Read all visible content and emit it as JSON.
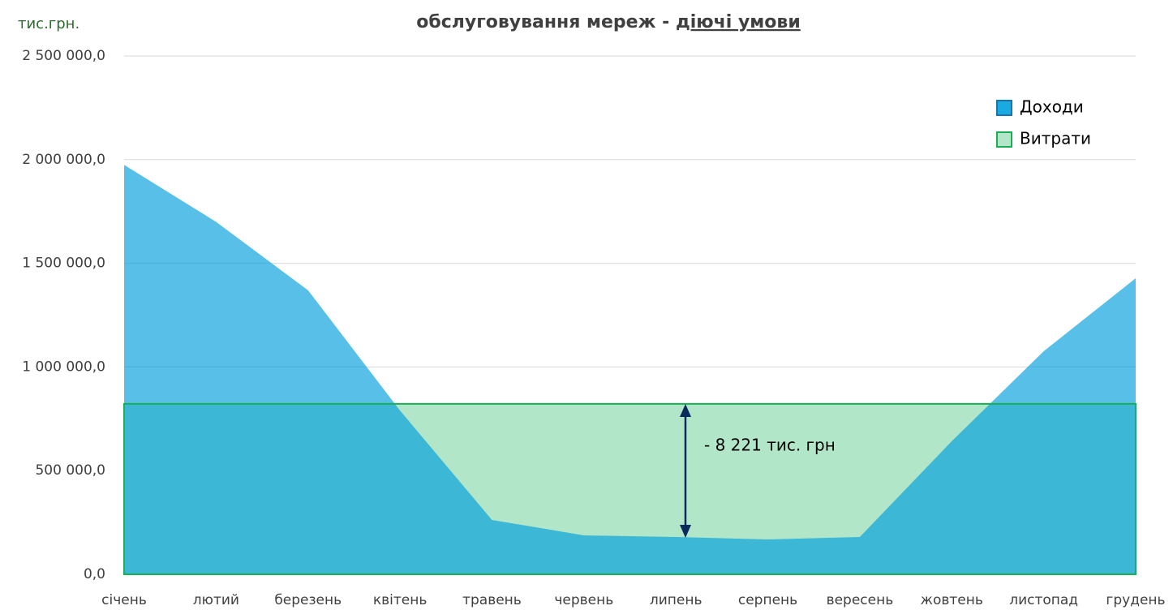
{
  "chart_data": {
    "type": "area",
    "title": "обслуговування мереж -",
    "title_underlined": "діючі умови",
    "unit_label": "тис.грн.",
    "annotation": "- 8 221 тис. грн",
    "categories": [
      "січень",
      "лютий",
      "березень",
      "квітень",
      "травень",
      "червень",
      "липень",
      "серпень",
      "вересень",
      "жовтень",
      "листопад",
      "грудень"
    ],
    "series": [
      {
        "name": "Доходи",
        "color": "#009edc",
        "values": [
          1975000,
          1700000,
          1370000,
          790000,
          262000,
          188000,
          180000,
          168000,
          180000,
          642000,
          1076000,
          1428000
        ]
      },
      {
        "name": "Витрати",
        "color": "#1aaf54",
        "values": [
          822000,
          822000,
          822000,
          822000,
          822000,
          822000,
          822000,
          822000,
          822000,
          822000,
          822000,
          822000
        ]
      }
    ],
    "ylim": [
      0,
      2500000
    ],
    "yticks": [
      {
        "value": 0,
        "label": "0,0"
      },
      {
        "value": 500000,
        "label": "500 000,0"
      },
      {
        "value": 1000000,
        "label": "1 000 000,0"
      },
      {
        "value": 1500000,
        "label": "1 500 000,0"
      },
      {
        "value": 2000000,
        "label": "2 000 000,0"
      },
      {
        "value": 2500000,
        "label": "2 500 000,0"
      }
    ],
    "grid": true,
    "legend": "top-right"
  }
}
